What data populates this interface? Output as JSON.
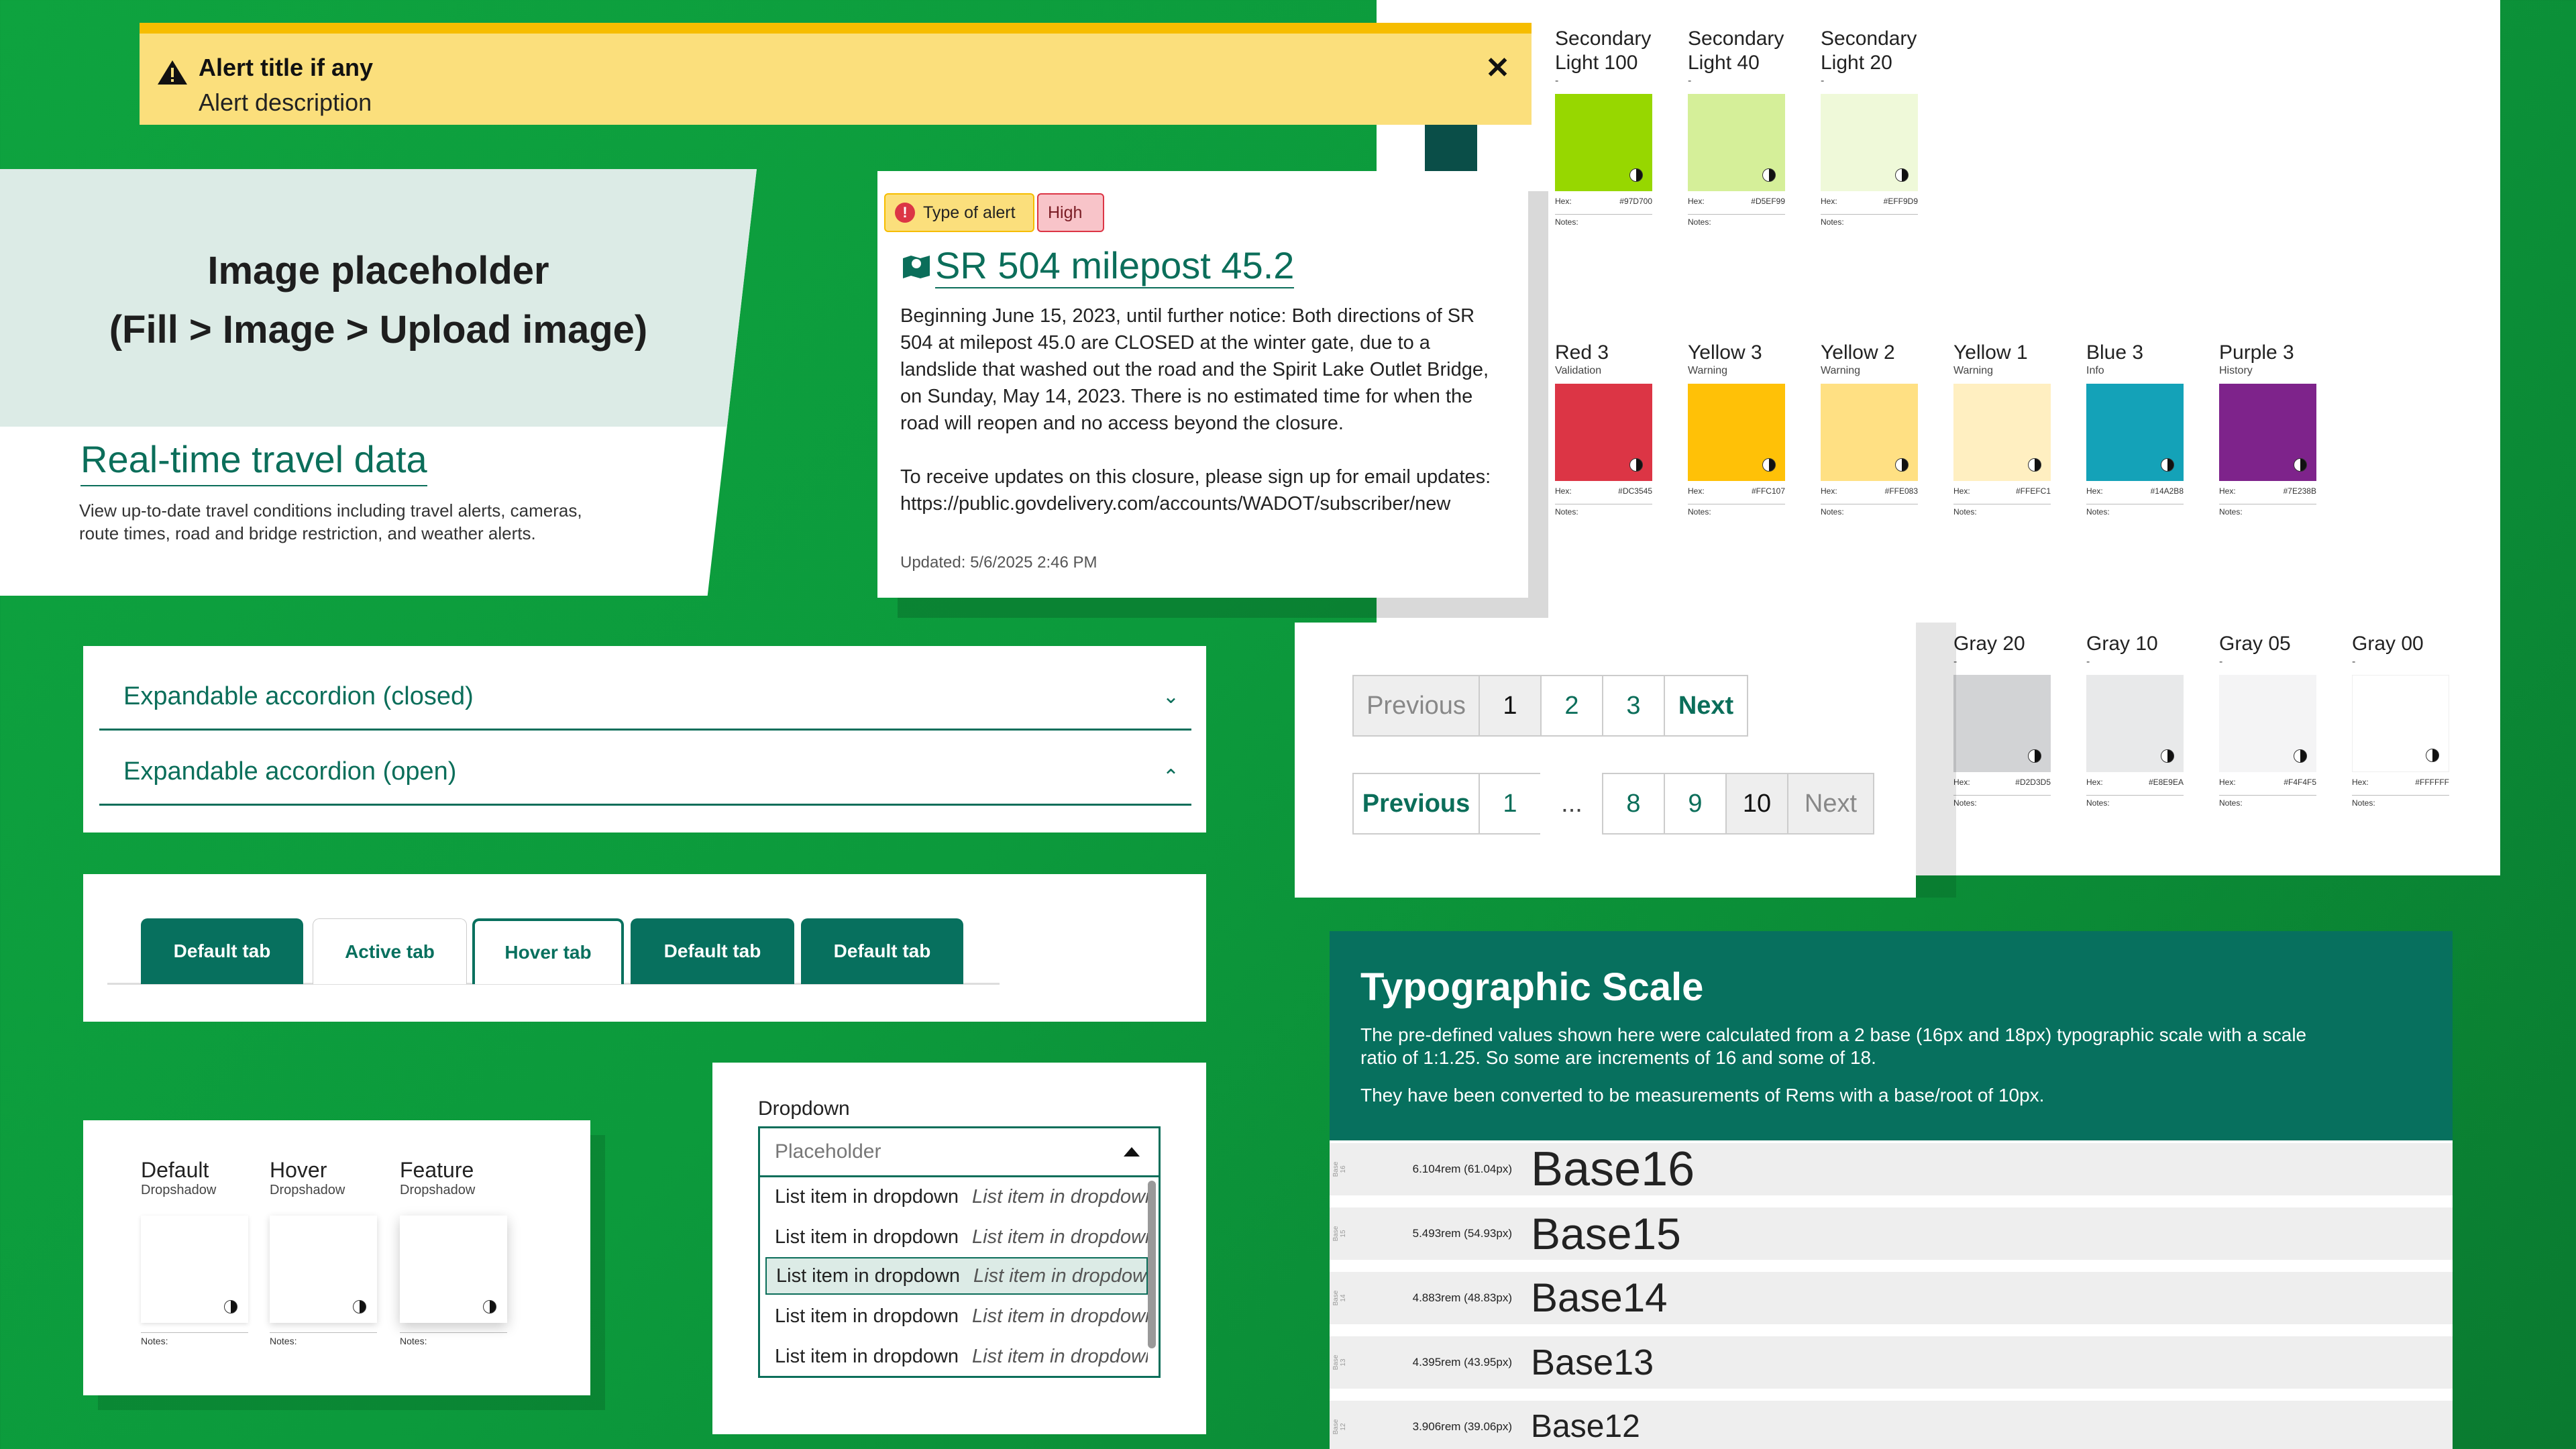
{
  "alert": {
    "title": "Alert title if any",
    "description": "Alert description",
    "close": "✕"
  },
  "image_card": {
    "placeholder_line1": "Image placeholder",
    "placeholder_line2": "(Fill > Image > Upload image)",
    "link": "Real-time travel data",
    "body": "View up-to-date travel conditions including travel alerts, cameras, route times, road and bridge restriction, and weather alerts."
  },
  "travel_alert": {
    "pill_type": "Type of alert",
    "pill_level": "High",
    "title": "SR 504 milepost 45.2",
    "body1": "Beginning June 15, 2023, until further notice: Both directions of SR 504 at milepost 45.0 are CLOSED at the winter gate, due to a landslide that washed out the road and the Spirit Lake Outlet Bridge, on Sunday, May 14, 2023. There is no estimated time for when the road will reopen and no access beyond the closure.",
    "body2": "To receive updates on this closure, please sign up for email updates: https://public.govdelivery.com/accounts/WADOT/subscriber/new",
    "updated": "Updated: 5/6/2025 2:46 PM"
  },
  "accordion": {
    "closed": "Expandable accordion (closed)",
    "open": "Expandable accordion (open)"
  },
  "tabs": [
    {
      "label": "Default tab",
      "state": "default"
    },
    {
      "label": "Active tab",
      "state": "active"
    },
    {
      "label": "Hover tab",
      "state": "hover"
    },
    {
      "label": "Default tab",
      "state": "default"
    },
    {
      "label": "Default tab",
      "state": "default"
    }
  ],
  "dropshadow": [
    {
      "name": "Default",
      "sub": "Dropshadow",
      "notes": "Notes:"
    },
    {
      "name": "Hover",
      "sub": "Dropshadow",
      "notes": "Notes:"
    },
    {
      "name": "Feature",
      "sub": "Dropshadow",
      "notes": "Notes:"
    }
  ],
  "dropdown": {
    "label": "Dropdown",
    "placeholder": "Placeholder",
    "items": [
      {
        "main": "List item in dropdown",
        "alt": "List item in dropdown"
      },
      {
        "main": "List item in dropdown",
        "alt": "List item in dropdown"
      },
      {
        "main": "List item in dropdown",
        "alt": "List item in dropdown"
      },
      {
        "main": "List item in dropdown",
        "alt": "List item in dropdown"
      },
      {
        "main": "List item in dropdown",
        "alt": "List item in dropdown"
      }
    ]
  },
  "pagination": {
    "row1": [
      "Previous",
      "1",
      "2",
      "3",
      "Next"
    ],
    "row2": [
      "Previous",
      "1",
      "...",
      "8",
      "9",
      "10",
      "Next"
    ]
  },
  "palette": {
    "hex_label": "Hex:",
    "notes_label": "Notes:",
    "row1": [
      {
        "name": "Secondary Light 100",
        "sub": "-",
        "hex": "#97D700",
        "color": "#97D700"
      },
      {
        "name": "Secondary Light 40",
        "sub": "-",
        "hex": "#D5EF99",
        "color": "#D5EF99"
      },
      {
        "name": "Secondary Light 20",
        "sub": "-",
        "hex": "#EFF9D9",
        "color": "#EFF9D9"
      }
    ],
    "row2": [
      {
        "name": "Red 3",
        "sub": "Validation",
        "hex": "#DC3545",
        "color": "#DC3545"
      },
      {
        "name": "Yellow 3",
        "sub": "Warning",
        "hex": "#FFC107",
        "color": "#FFC107"
      },
      {
        "name": "Yellow 2",
        "sub": "Warning",
        "hex": "#FFE083",
        "color": "#FFE083"
      },
      {
        "name": "Yellow 1",
        "sub": "Warning",
        "hex": "#FFEFC1",
        "color": "#FFEFC1"
      },
      {
        "name": "Blue 3",
        "sub": "Info",
        "hex": "#14A2B8",
        "color": "#14A2B8"
      },
      {
        "name": "Purple 3",
        "sub": "History",
        "hex": "#7E238B",
        "color": "#7E238B"
      }
    ],
    "row3": [
      {
        "name": "Gray 20",
        "sub": "-",
        "hex": "#D2D3D5",
        "color": "#D2D3D5"
      },
      {
        "name": "Gray 10",
        "sub": "-",
        "hex": "#E8E9EA",
        "color": "#E8E9EA"
      },
      {
        "name": "Gray 05",
        "sub": "-",
        "hex": "#F4F4F5",
        "color": "#F4F4F5"
      },
      {
        "name": "Gray 00",
        "sub": "-",
        "hex": "#FFFFFF",
        "color": "#FFFFFF"
      }
    ]
  },
  "typography": {
    "title": "Typographic Scale",
    "p1": "The pre-defined values shown here were calculated from a 2 base (16px and 18px) typographic scale with a scale ratio of  1:1.25. So some are increments of 16 and some of 18.",
    "p2": "They have been converted to be measurements of Rems with a base/root of 10px.",
    "rows": [
      {
        "side": "Base 16",
        "size": "6.104rem (61.04px)",
        "name": "Base16"
      },
      {
        "side": "Base 15",
        "size": "5.493rem (54.93px)",
        "name": "Base15"
      },
      {
        "side": "Base 14",
        "size": "4.883rem (48.83px)",
        "name": "Base14"
      },
      {
        "side": "Base 13",
        "size": "4.395rem (43.95px)",
        "name": "Base13"
      },
      {
        "side": "Base 12",
        "size": "3.906rem (39.06px)",
        "name": "Base12"
      }
    ]
  }
}
